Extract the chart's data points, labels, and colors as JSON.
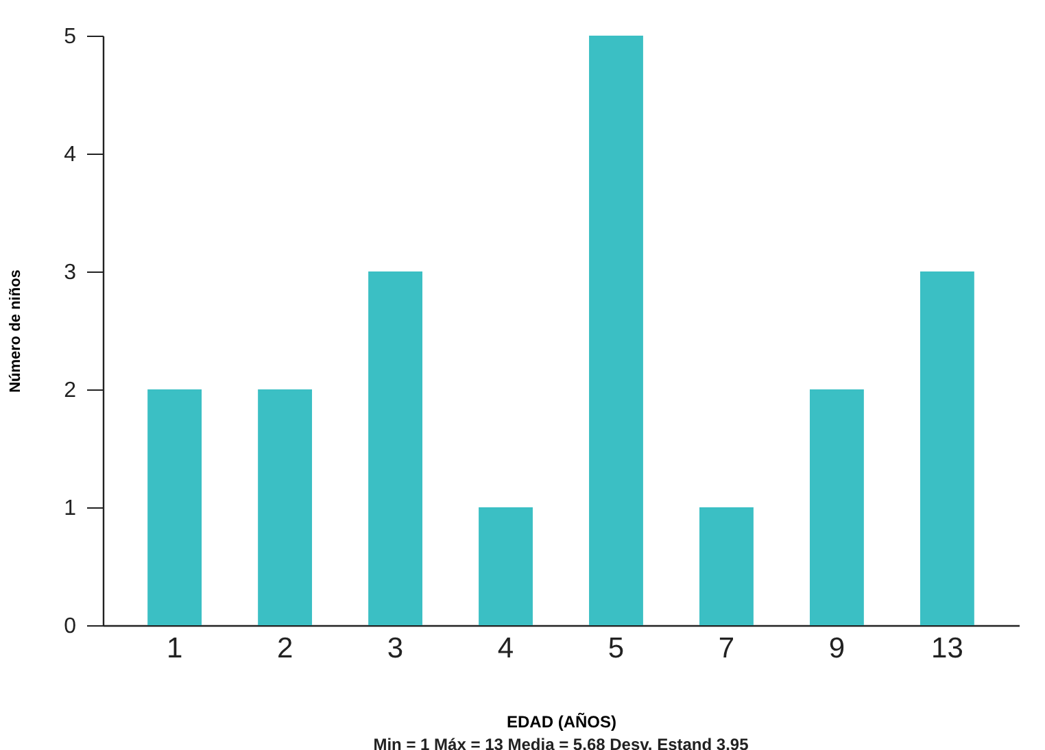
{
  "chart_data": {
    "type": "bar",
    "xlabel": "EDAD (AÑOS)",
    "ylabel": "Número de niños",
    "categories": [
      "1",
      "2",
      "3",
      "4",
      "5",
      "7",
      "9",
      "13"
    ],
    "values": [
      2,
      2,
      3,
      1,
      5,
      1,
      2,
      3
    ],
    "color": "#3bbfc4",
    "ylim": [
      0,
      5
    ],
    "yticks": [
      0,
      1,
      2,
      3,
      4,
      5
    ],
    "grid": false,
    "annotations": [
      "Min = 1   Máx = 13   Media = 5.68  Desv. Estand 3.95"
    ]
  }
}
